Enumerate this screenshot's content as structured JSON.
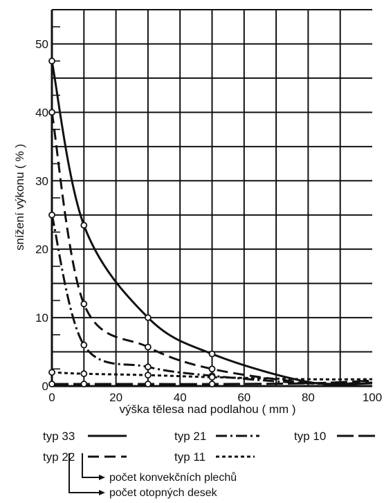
{
  "chart_data": {
    "type": "line",
    "xlabel": "výška tělesa nad podlahou  ( mm )",
    "ylabel": "snížení výkonu  ( % )",
    "xlim": [
      0,
      100
    ],
    "ylim": [
      0,
      55
    ],
    "x_ticks": [
      "0",
      "20",
      "40",
      "60",
      "80",
      "100"
    ],
    "y_ticks": [
      "0",
      "10",
      "20",
      "30",
      "40",
      "50"
    ],
    "grid": true,
    "series": [
      {
        "name": "typ 33",
        "style": "solid",
        "x": [
          0,
          10,
          30,
          50,
          80,
          100
        ],
        "y": [
          47.5,
          23.5,
          10,
          4.7,
          0.6,
          0.4
        ],
        "markers": [
          0,
          10,
          30,
          50
        ]
      },
      {
        "name": "typ 22",
        "style": "dash",
        "x": [
          0,
          10,
          30,
          50,
          80,
          100
        ],
        "y": [
          40,
          12,
          5.7,
          2.5,
          0.5,
          0.5
        ],
        "markers": [
          0,
          10,
          30,
          50
        ]
      },
      {
        "name": "typ 21",
        "style": "dashdot",
        "x": [
          0,
          10,
          30,
          50,
          80,
          100
        ],
        "y": [
          25,
          6,
          2.8,
          1.5,
          0.4,
          0.4
        ],
        "markers": [
          0,
          10,
          30,
          50
        ]
      },
      {
        "name": "typ 11",
        "style": "shortdash",
        "x": [
          0,
          10,
          30,
          50,
          80,
          100
        ],
        "y": [
          2,
          1.8,
          1.6,
          1.3,
          1.0,
          1.0
        ],
        "markers": [
          0,
          10,
          30,
          50
        ]
      },
      {
        "name": "typ 10",
        "style": "longdash",
        "x": [
          0,
          10,
          30,
          50,
          80,
          100
        ],
        "y": [
          0.3,
          0.3,
          0.3,
          0.3,
          0.4,
          0.8
        ],
        "markers": [
          0,
          10,
          30,
          50
        ]
      }
    ],
    "legend": [
      {
        "label": "typ 33",
        "style": "solid"
      },
      {
        "label": "typ 21",
        "style": "dashdot"
      },
      {
        "label": "typ 10",
        "style": "longdash"
      },
      {
        "label": "typ 22",
        "style": "dash"
      },
      {
        "label": "typ 11",
        "style": "shortdash"
      }
    ],
    "annotations": [
      "počet konvekčních plechů",
      "počet otopných desek"
    ]
  }
}
